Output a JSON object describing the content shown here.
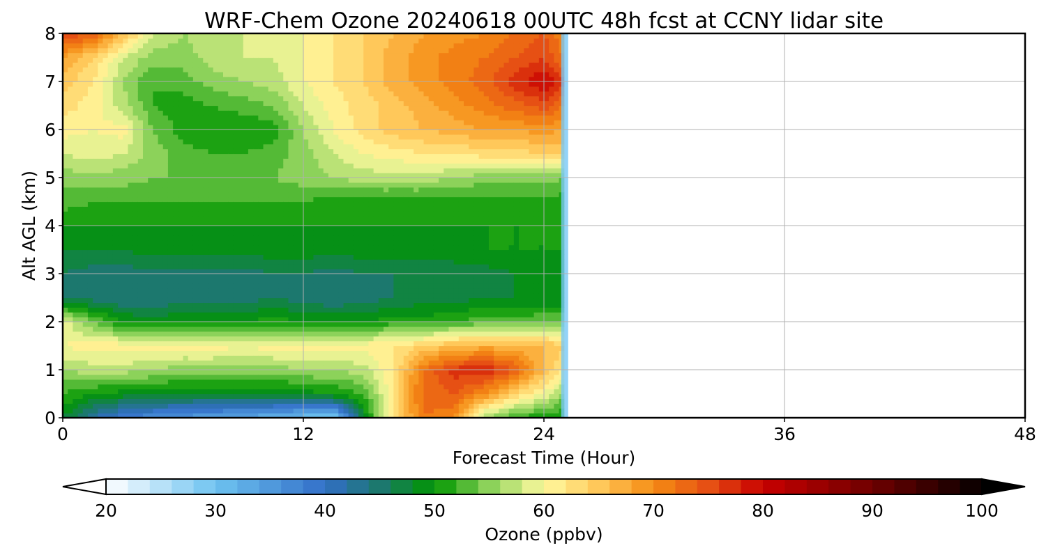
{
  "chart_data": {
    "type": "heatmap",
    "title": "WRF-Chem Ozone  20240618 00UTC 48h fcst at CCNY lidar site",
    "xlabel": "Forecast Time (Hour)",
    "ylabel": "Alt AGL (km)",
    "xlim": [
      0,
      48
    ],
    "ylim": [
      0,
      8
    ],
    "xticks": [
      "0",
      "12",
      "24",
      "36",
      "48"
    ],
    "yticks": [
      "0",
      "1",
      "2",
      "3",
      "4",
      "5",
      "6",
      "7",
      "8"
    ],
    "grid": true,
    "colorbar": {
      "label": "Ozone  (ppbv)",
      "range": [
        20,
        100
      ],
      "step": 2,
      "extend": "both",
      "ticks": [
        "20",
        "30",
        "40",
        "50",
        "60",
        "70",
        "80",
        "90",
        "100"
      ]
    },
    "levels_km": [
      0,
      0.5,
      1,
      1.5,
      2,
      2.5,
      3,
      3.5,
      4,
      4.5,
      5,
      5.5,
      6,
      6.5,
      7,
      7.5,
      8
    ],
    "hours": [
      0,
      1.5,
      3,
      4.5,
      6,
      7.5,
      9,
      10.5,
      12,
      13.5,
      15,
      16.5,
      18,
      19.5,
      21,
      22.5,
      24,
      25
    ],
    "ozone_ppbv": [
      [
        48,
        42,
        38,
        36,
        35,
        34,
        33,
        32,
        30,
        28,
        48,
        62,
        72,
        70,
        56,
        52,
        50,
        50
      ],
      [
        52,
        50,
        49,
        49,
        48,
        48,
        48,
        48,
        49,
        50,
        52,
        62,
        73,
        74,
        70,
        64,
        60,
        55
      ],
      [
        56,
        57,
        57,
        56,
        55,
        55,
        55,
        55,
        56,
        56,
        57,
        62,
        72,
        77,
        78,
        74,
        66,
        62
      ],
      [
        60,
        61,
        61,
        61,
        61,
        61,
        60,
        61,
        61,
        61,
        61,
        62,
        64,
        66,
        67,
        67,
        66,
        64
      ],
      [
        59,
        54,
        50,
        49,
        50,
        50,
        50,
        51,
        50,
        50,
        50,
        51,
        51,
        52,
        53,
        53,
        54,
        54
      ],
      [
        46,
        45,
        44,
        44,
        45,
        45,
        45,
        46,
        45,
        44,
        45,
        46,
        47,
        47,
        48,
        48,
        48,
        48
      ],
      [
        46,
        45,
        45,
        45,
        45,
        45,
        45,
        46,
        46,
        45,
        46,
        46,
        46,
        47,
        47,
        48,
        48,
        48
      ],
      [
        48,
        48,
        48,
        49,
        49,
        49,
        49,
        49,
        49,
        49,
        49,
        49,
        49,
        49,
        50,
        50,
        50,
        50
      ],
      [
        50,
        50,
        50,
        50,
        50,
        50,
        50,
        50,
        50,
        50,
        50,
        50,
        50,
        50,
        50,
        50,
        50,
        50
      ],
      [
        53,
        52,
        52,
        52,
        52,
        52,
        52,
        52,
        52,
        51,
        51,
        51,
        51,
        51,
        51,
        51,
        51,
        51
      ],
      [
        55,
        55,
        55,
        54,
        54,
        54,
        54,
        54,
        55,
        56,
        57,
        57,
        57,
        56,
        55,
        55,
        55,
        54
      ],
      [
        58,
        59,
        58,
        55,
        53,
        52,
        52,
        53,
        55,
        58,
        60,
        61,
        62,
        62,
        63,
        63,
        64,
        64
      ],
      [
        61,
        60,
        61,
        54,
        51,
        50,
        50,
        51,
        56,
        60,
        63,
        65,
        66,
        67,
        68,
        68,
        69,
        68
      ],
      [
        63,
        61,
        57,
        52,
        51,
        52,
        53,
        54,
        58,
        61,
        63,
        65,
        67,
        69,
        71,
        73,
        75,
        72
      ],
      [
        65,
        62,
        56,
        52,
        53,
        55,
        56,
        57,
        60,
        62,
        64,
        67,
        69,
        71,
        73,
        77,
        80,
        76
      ],
      [
        68,
        64,
        58,
        55,
        55,
        57,
        58,
        58,
        60,
        62,
        64,
        67,
        69,
        71,
        72,
        74,
        76,
        72
      ],
      [
        76,
        74,
        66,
        58,
        56,
        57,
        58,
        59,
        60,
        62,
        64,
        66,
        68,
        69,
        70,
        72,
        74,
        70
      ]
    ]
  }
}
